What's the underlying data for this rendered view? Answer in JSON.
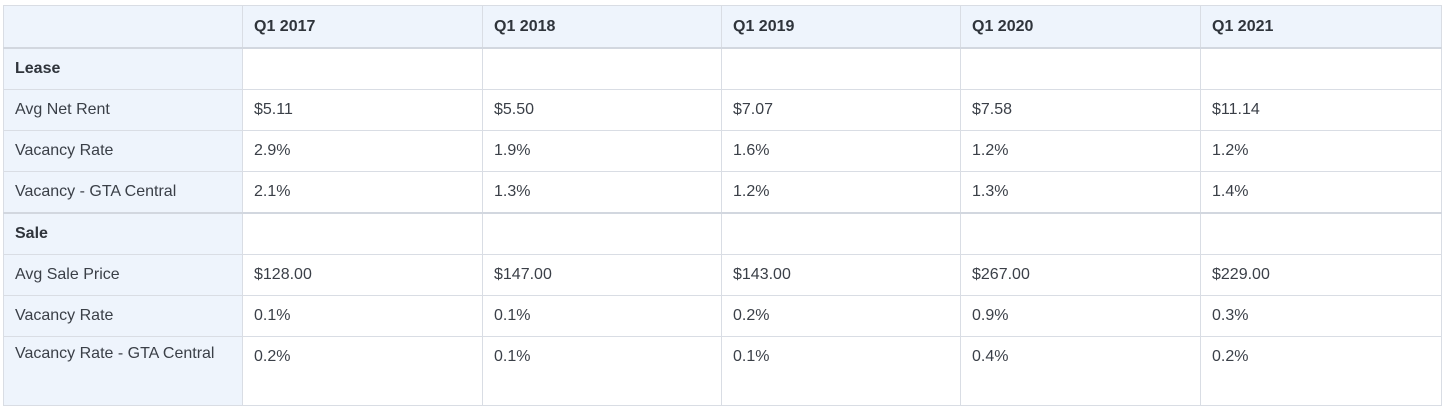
{
  "table": {
    "columns": [
      "",
      "Q1 2017",
      "Q1 2018",
      "Q1 2019",
      "Q1 2020",
      "Q1 2021"
    ],
    "sections": [
      {
        "title": "Lease",
        "rows": [
          {
            "label": "Avg Net Rent",
            "values": [
              "$5.11",
              "$5.50",
              "$7.07",
              "$7.58",
              "$11.14"
            ]
          },
          {
            "label": "Vacancy Rate",
            "values": [
              "2.9%",
              "1.9%",
              "1.6%",
              "1.2%",
              "1.2%"
            ]
          },
          {
            "label": "Vacancy - GTA Central",
            "values": [
              "2.1%",
              "1.3%",
              "1.2%",
              "1.3%",
              "1.4%"
            ]
          }
        ]
      },
      {
        "title": "Sale",
        "rows": [
          {
            "label": "Avg Sale Price",
            "values": [
              "$128.00",
              "$147.00",
              "$143.00",
              "$267.00",
              "$229.00"
            ]
          },
          {
            "label": "Vacancy Rate",
            "values": [
              "0.1%",
              "0.1%",
              "0.2%",
              "0.9%",
              "0.3%"
            ]
          },
          {
            "label": "Vacancy Rate - GTA Central",
            "values": [
              "0.2%",
              "0.1%",
              "0.1%",
              "0.4%",
              "0.2%"
            ]
          }
        ]
      }
    ]
  }
}
